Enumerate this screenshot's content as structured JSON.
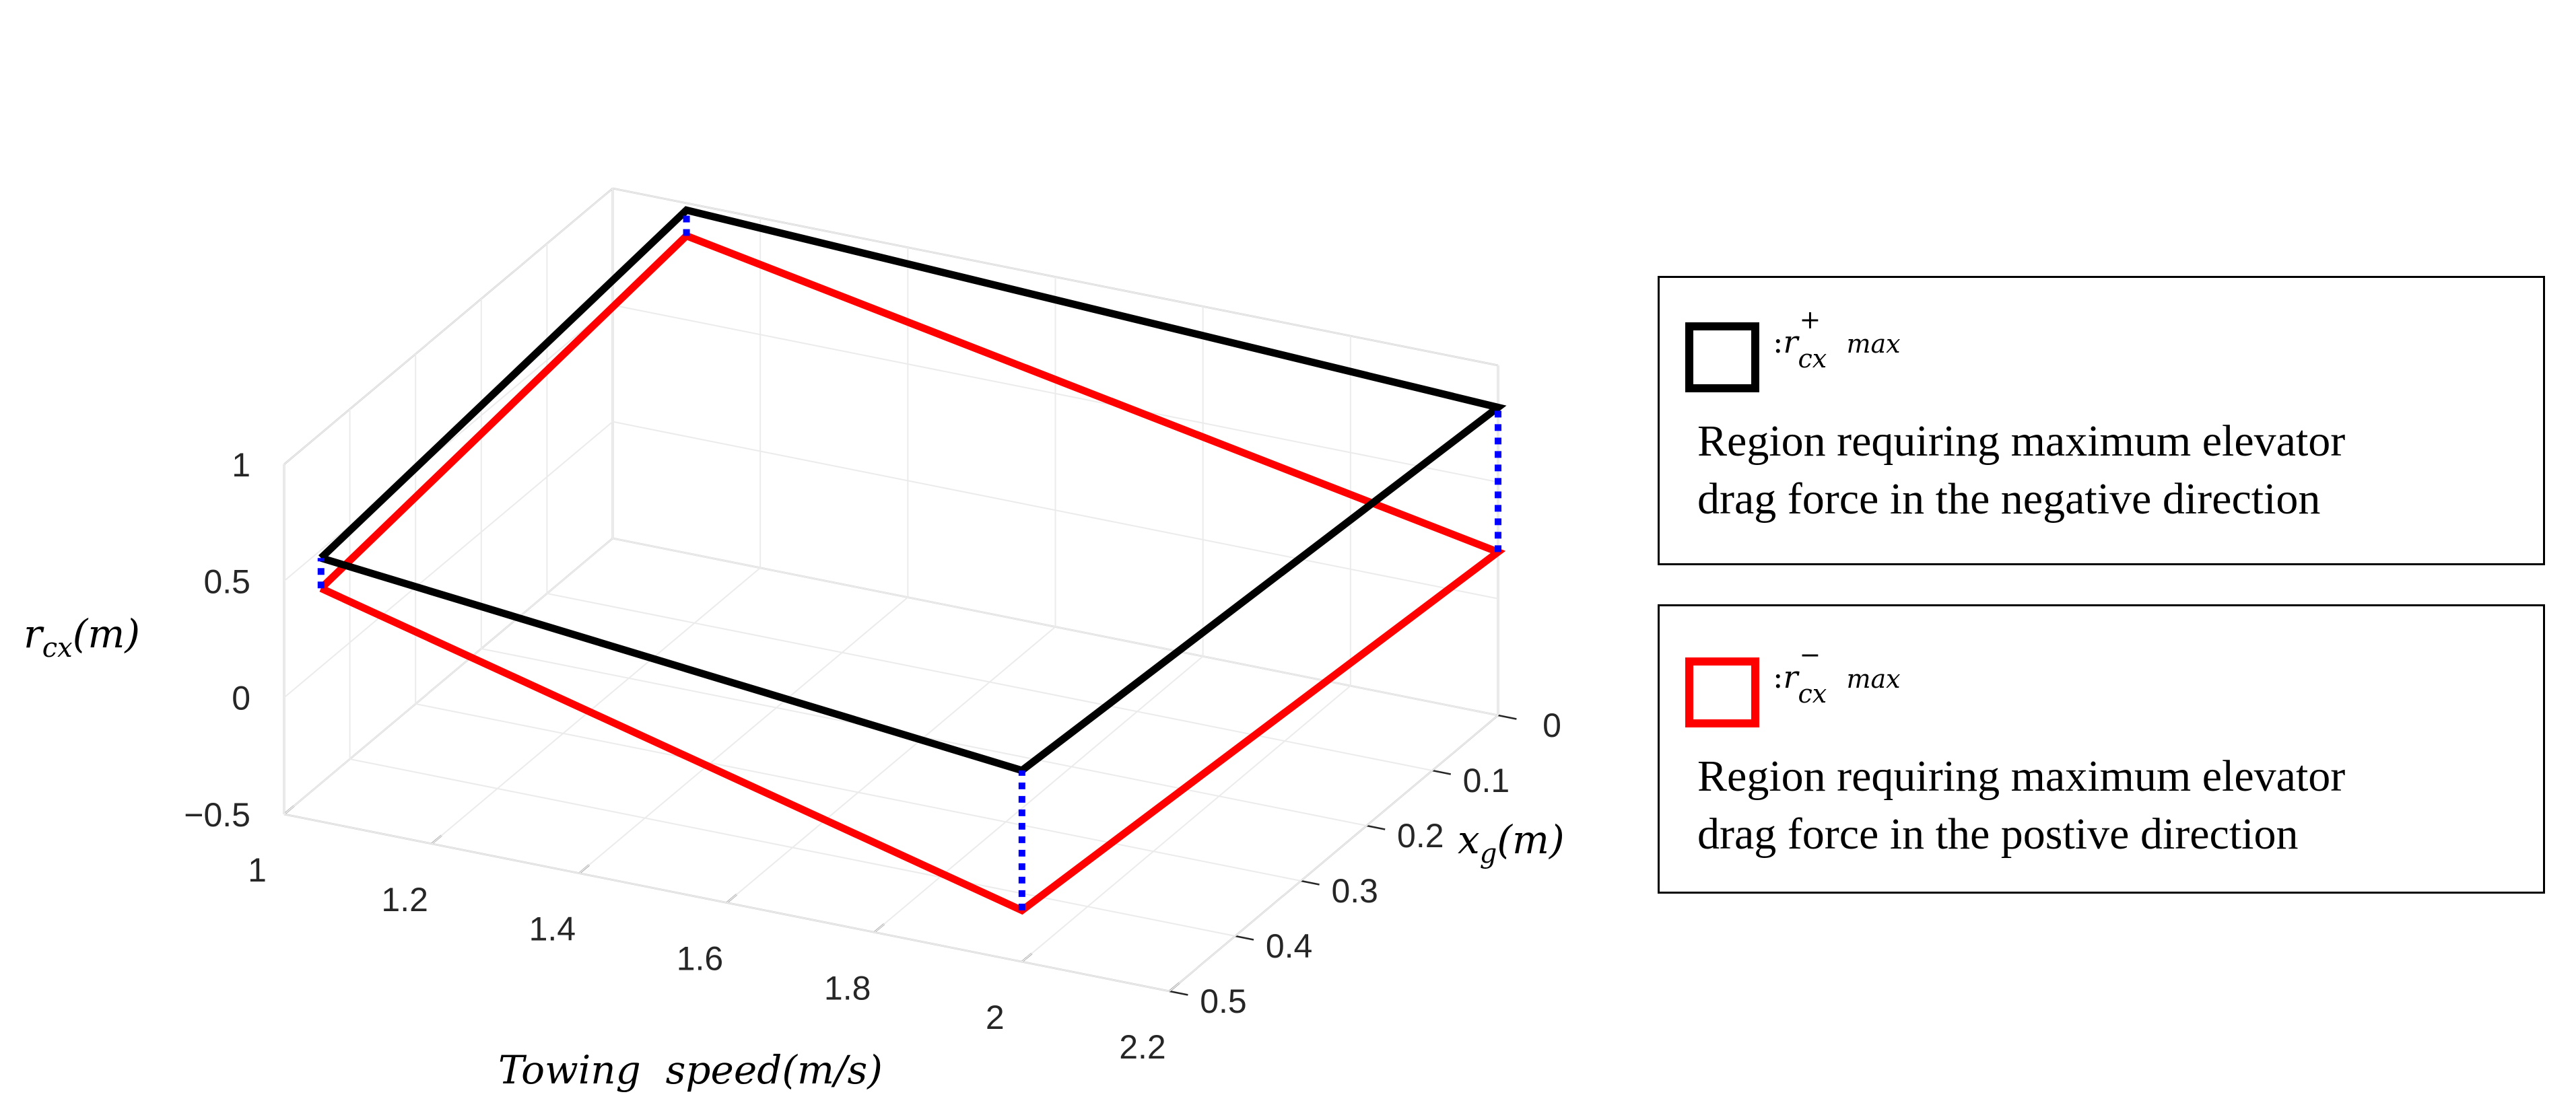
{
  "chart_data": {
    "type": "3d-line",
    "title": "",
    "xlabel": "Towing  speed(m/s)",
    "ylabel": "x_g(m)",
    "zlabel": "r_cx(m)",
    "xlim": [
      1,
      2.2
    ],
    "ylim": [
      0,
      0.5
    ],
    "zlim": [
      -0.5,
      1
    ],
    "x_ticks": [
      "1",
      "1.2",
      "1.4",
      "1.6",
      "1.8",
      "2",
      "2.2"
    ],
    "y_ticks": [
      "0",
      "0.1",
      "0.2",
      "0.3",
      "0.4",
      "0.5"
    ],
    "z_ticks": [
      "1",
      "0.5",
      "0",
      "−0.5"
    ],
    "series": [
      {
        "name": "r_cx^+ max",
        "color": "#000000",
        "points": [
          [
            1.05,
            0.5,
            0.63
          ],
          [
            2.0,
            0.5,
            0.32
          ],
          [
            2.2,
            0.0,
            0.82
          ],
          [
            1.1,
            0.0,
            0.97
          ],
          [
            1.05,
            0.5,
            0.63
          ]
        ]
      },
      {
        "name": "r_cx^- max",
        "color": "#ff0000",
        "points": [
          [
            1.05,
            0.5,
            0.5
          ],
          [
            2.0,
            0.5,
            -0.28
          ],
          [
            2.2,
            0.0,
            0.2
          ],
          [
            1.1,
            0.0,
            0.86
          ],
          [
            1.05,
            0.5,
            0.5
          ]
        ]
      }
    ],
    "connectors": {
      "color": "#0000ff",
      "style": "dotted",
      "pairs": [
        [
          [
            1.05,
            0.5,
            0.5
          ],
          [
            1.05,
            0.5,
            0.63
          ]
        ],
        [
          [
            2.0,
            0.5,
            -0.28
          ],
          [
            2.0,
            0.5,
            0.32
          ]
        ],
        [
          [
            2.2,
            0.0,
            0.2
          ],
          [
            2.2,
            0.0,
            0.82
          ]
        ],
        [
          [
            1.1,
            0.0,
            0.86
          ],
          [
            1.1,
            0.0,
            0.97
          ]
        ]
      ]
    },
    "legend": [
      {
        "symbol_prefix": ":",
        "label": "r",
        "sub": "cx",
        "sup": "+",
        "suffix": "max",
        "color": "#000000",
        "description_lines": [
          "Region requiring maximum elevator",
          "drag force in the negative direction"
        ]
      },
      {
        "symbol_prefix": ":",
        "label": "r",
        "sub": "cx",
        "sup": "−",
        "suffix": "max",
        "color": "#ff0000",
        "description_lines": [
          "Region requiring maximum elevator",
          "drag force in the postive direction"
        ]
      }
    ]
  }
}
